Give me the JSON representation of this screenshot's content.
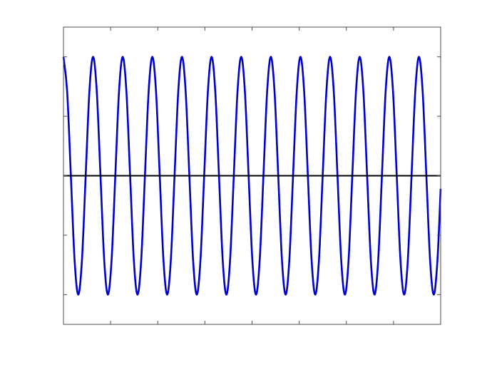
{
  "chart_data": {
    "type": "line",
    "x": [
      0,
      0.0785,
      0.1571,
      0.2356,
      0.3142,
      0.3927,
      0.4712,
      0.5498,
      0.6283,
      0.7069,
      0.7854,
      0.8639,
      0.9425,
      1.021,
      1.0996,
      1.1781,
      1.2566,
      1.3352,
      1.4137,
      1.4923,
      1.5708,
      1.6493,
      1.7279,
      1.8064,
      1.885,
      1.9635,
      2.042,
      2.1206,
      2.1991,
      2.2777,
      2.3562,
      2.4347,
      2.5133,
      2.5918,
      2.6704,
      2.7489,
      2.8274,
      2.906,
      2.9845,
      3.0631,
      3.1416,
      3.2201,
      3.2987,
      3.3772,
      3.4558,
      3.5343,
      3.6128,
      3.6914,
      3.7699,
      3.8485,
      3.927,
      4.0055,
      4.0841,
      4.1626,
      4.2412,
      4.3197,
      4.3982,
      4.4768,
      4.5553,
      4.6339,
      4.7124,
      4.7909,
      4.8695,
      4.948,
      5.0265,
      5.1051,
      5.1836,
      5.2622,
      5.3407,
      5.4192,
      5.4978,
      5.5763,
      5.6549,
      5.7334,
      5.8119,
      5.8905,
      5.969,
      6.0476,
      6.1261,
      6.2046,
      6.2832,
      6.3617,
      6.4403,
      6.5188,
      6.5973,
      6.6759,
      6.7544,
      6.833,
      6.9115,
      6.99,
      7.0686,
      7.1471,
      7.2257,
      7.3042,
      7.3827,
      7.4613,
      7.5398,
      7.6184,
      7.6969,
      7.7754,
      7.854,
      7.9325,
      8
    ],
    "values": [
      1,
      0.707,
      0,
      -0.707,
      -1,
      -0.707,
      0,
      0.707,
      1,
      0.707,
      0,
      -0.707,
      -1,
      -0.707,
      0,
      0.707,
      1,
      0.707,
      0,
      -0.707,
      -1,
      -0.707,
      0,
      0.707,
      1,
      0.707,
      0,
      -0.707,
      -1,
      -0.707,
      0,
      0.707,
      1,
      0.707,
      0,
      -0.707,
      -1,
      -0.707,
      0,
      0.707,
      1,
      0.707,
      0,
      -0.707,
      -1,
      -0.707,
      0,
      0.707,
      1,
      0.707,
      0,
      -0.707,
      -1,
      -0.707,
      0,
      0.707,
      1,
      0.707,
      0,
      -0.707,
      -1,
      -0.707,
      0,
      0.707,
      1,
      0.707,
      0,
      -0.707,
      -1,
      -0.707,
      0,
      0.707,
      1,
      0.707,
      0,
      -0.707,
      -1,
      -0.707,
      0,
      0.707,
      1,
      0.707,
      0,
      -0.707,
      -1,
      -0.707,
      0,
      0.707,
      1,
      0.707,
      0,
      -0.707,
      -1,
      -0.707,
      0,
      0.707,
      1,
      0.707,
      0,
      -0.707,
      -1,
      -0.707,
      -0.11
    ],
    "color": "#0000cc",
    "hline": 0,
    "hline_color": "#000000",
    "xlim": [
      0,
      8
    ],
    "xticks": [
      0,
      1,
      2,
      3,
      4,
      5,
      6,
      7,
      8
    ],
    "ylim": [
      -1.25,
      1.25
    ],
    "yticks": [
      -1,
      -0.5,
      0,
      0.5,
      1
    ],
    "grid": false
  }
}
